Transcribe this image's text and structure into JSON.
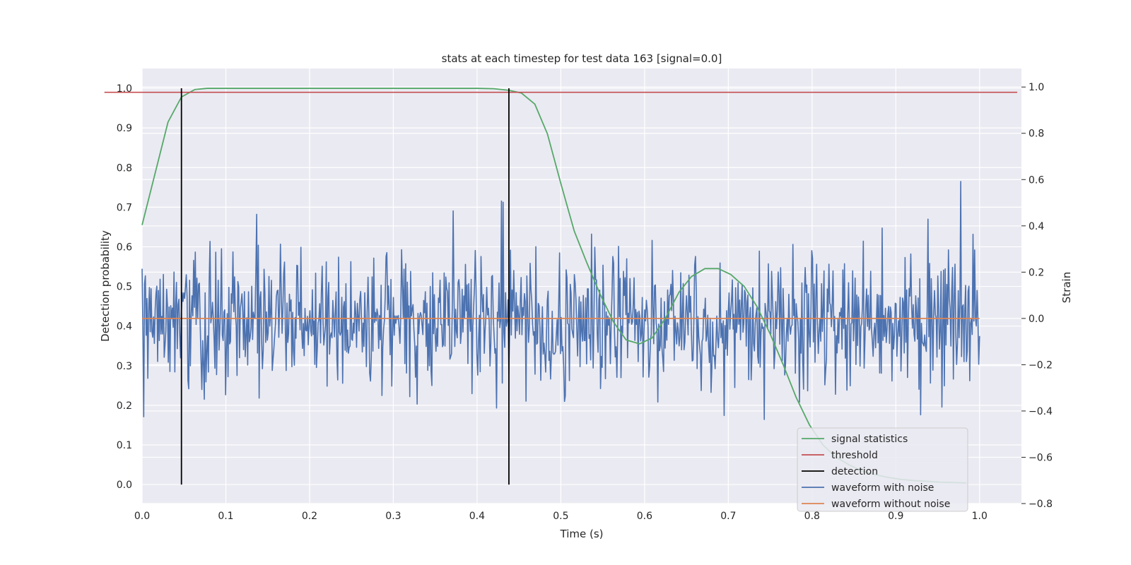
{
  "chart_data": {
    "type": "line",
    "title": "stats at each timestep for test data 163 [signal=0.0]",
    "xlabel": "Time (s)",
    "ylabel_left": "Detection probability",
    "ylabel_right": "Strain",
    "xlim": [
      0.0,
      1.05
    ],
    "ylim_left": [
      -0.048,
      1.05
    ],
    "ylim_right": [
      -0.8,
      1.08
    ],
    "x_ticks": [
      "0.0",
      "0.1",
      "0.2",
      "0.3",
      "0.4",
      "0.5",
      "0.6",
      "0.7",
      "0.8",
      "0.9",
      "1.0"
    ],
    "y_ticks_left": [
      "0.0",
      "0.1",
      "0.2",
      "0.3",
      "0.4",
      "0.5",
      "0.6",
      "0.7",
      "0.8",
      "0.9",
      "1.0"
    ],
    "y_ticks_right": [
      "−0.8",
      "−0.6",
      "−0.4",
      "−0.2",
      "0.0",
      "0.2",
      "0.4",
      "0.6",
      "0.8",
      "1.0"
    ],
    "grid": true,
    "legend_position": "lower-right",
    "series": [
      {
        "name": "signal statistics",
        "axis": "left",
        "color": "#55a868",
        "x": [
          0.0,
          0.031,
          0.047,
          0.063,
          0.078,
          0.1,
          0.2,
          0.3,
          0.4,
          0.42,
          0.438,
          0.453,
          0.469,
          0.484,
          0.5,
          0.516,
          0.531,
          0.547,
          0.563,
          0.578,
          0.594,
          0.609,
          0.625,
          0.641,
          0.656,
          0.672,
          0.688,
          0.703,
          0.719,
          0.734,
          0.75,
          0.766,
          0.781,
          0.797,
          0.813,
          0.828,
          0.844,
          0.859,
          0.875,
          0.891,
          0.906,
          0.922,
          0.938,
          0.953,
          0.969,
          0.984
        ],
        "y": [
          0.655,
          0.915,
          0.978,
          0.997,
          1.0,
          1.0,
          1.0,
          1.0,
          1.0,
          0.999,
          0.995,
          0.988,
          0.96,
          0.885,
          0.76,
          0.64,
          0.56,
          0.48,
          0.41,
          0.365,
          0.355,
          0.37,
          0.42,
          0.485,
          0.525,
          0.545,
          0.545,
          0.53,
          0.5,
          0.45,
          0.38,
          0.3,
          0.22,
          0.15,
          0.1,
          0.07,
          0.05,
          0.035,
          0.025,
          0.018,
          0.013,
          0.01,
          0.008,
          0.006,
          0.005,
          0.004
        ]
      },
      {
        "name": "threshold",
        "axis": "left",
        "color": "#c44e52",
        "x": [
          -0.045,
          1.045
        ],
        "y": [
          0.99,
          0.99
        ]
      },
      {
        "name": "waveform without noise",
        "axis": "right",
        "color": "#dd8452",
        "x": [
          0.0,
          1.0
        ],
        "y": [
          0.0,
          0.0
        ]
      },
      {
        "name": "waveform with noise",
        "axis": "right",
        "color": "#4c72b0",
        "x_start": 0.0,
        "x_end": 1.0,
        "seed": 163,
        "std": 0.15,
        "n_points": 1024
      }
    ],
    "detections": {
      "name": "detection",
      "color": "#000000",
      "x": [
        0.047,
        0.438
      ],
      "y_range": [
        0.0,
        1.0
      ]
    }
  }
}
